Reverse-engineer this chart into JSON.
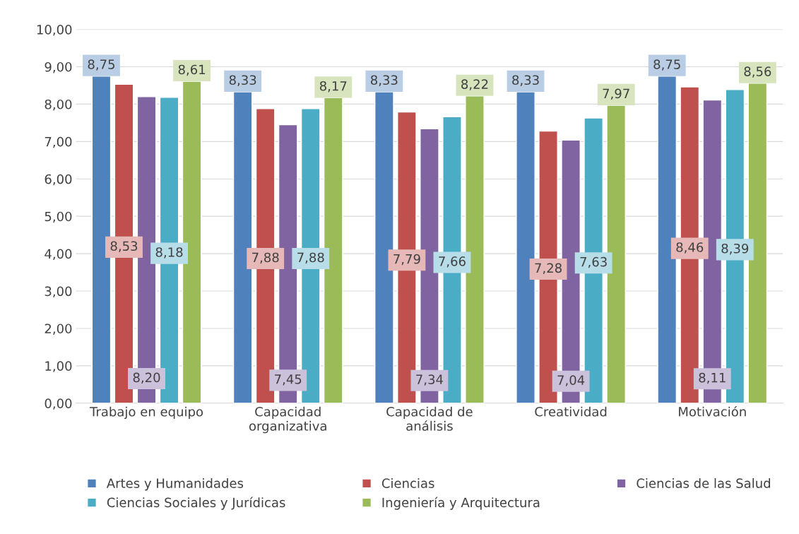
{
  "chart_data": {
    "type": "bar",
    "categories": [
      "Trabajo en equipo",
      "Capacidad\norganizativa",
      "Capacidad de\nanálisis",
      "Creatividad",
      "Motivación"
    ],
    "series": [
      {
        "name": "Artes y Humanidades",
        "color": "#4f81bd",
        "values": [
          8.75,
          8.33,
          8.33,
          8.33,
          8.75
        ],
        "value_labels": [
          "8,75",
          "8,33",
          "8,33",
          "8,33",
          "8,75"
        ]
      },
      {
        "name": "Ciencias",
        "color": "#c0504d",
        "values": [
          8.53,
          7.88,
          7.79,
          7.28,
          8.46
        ],
        "value_labels": [
          "8,53",
          "7,88",
          "7,79",
          "7,28",
          "8,46"
        ]
      },
      {
        "name": "Ciencias de las Salud",
        "color": "#8064a2",
        "values": [
          8.2,
          7.45,
          7.34,
          7.04,
          8.11
        ],
        "value_labels": [
          "8,20",
          "7,45",
          "7,34",
          "7,04",
          "8,11"
        ]
      },
      {
        "name": "Ciencias Sociales y Jurídicas",
        "color": "#4bacc6",
        "values": [
          8.18,
          7.88,
          7.66,
          7.63,
          8.39
        ],
        "value_labels": [
          "8,18",
          "7,88",
          "7,66",
          "7,63",
          "8,39"
        ]
      },
      {
        "name": "Ingeniería y Arquitectura",
        "color": "#9bbb59",
        "values": [
          8.61,
          8.17,
          8.22,
          7.97,
          8.56
        ],
        "value_labels": [
          "8,61",
          "8,17",
          "8,22",
          "7,97",
          "8,56"
        ]
      }
    ],
    "ylim": [
      0,
      10
    ],
    "yticks": [
      {
        "value": 0,
        "label": "0,00"
      },
      {
        "value": 1,
        "label": "1,00"
      },
      {
        "value": 2,
        "label": "2,00"
      },
      {
        "value": 3,
        "label": "3,00"
      },
      {
        "value": 4,
        "label": "4,00"
      },
      {
        "value": 5,
        "label": "5,00"
      },
      {
        "value": 6,
        "label": "6,00"
      },
      {
        "value": 7,
        "label": "7,00"
      },
      {
        "value": 8,
        "label": "8,00"
      },
      {
        "value": 9,
        "label": "9,00"
      },
      {
        "value": 10,
        "label": "10,00"
      }
    ],
    "grid": "y",
    "legend": "bottom"
  }
}
